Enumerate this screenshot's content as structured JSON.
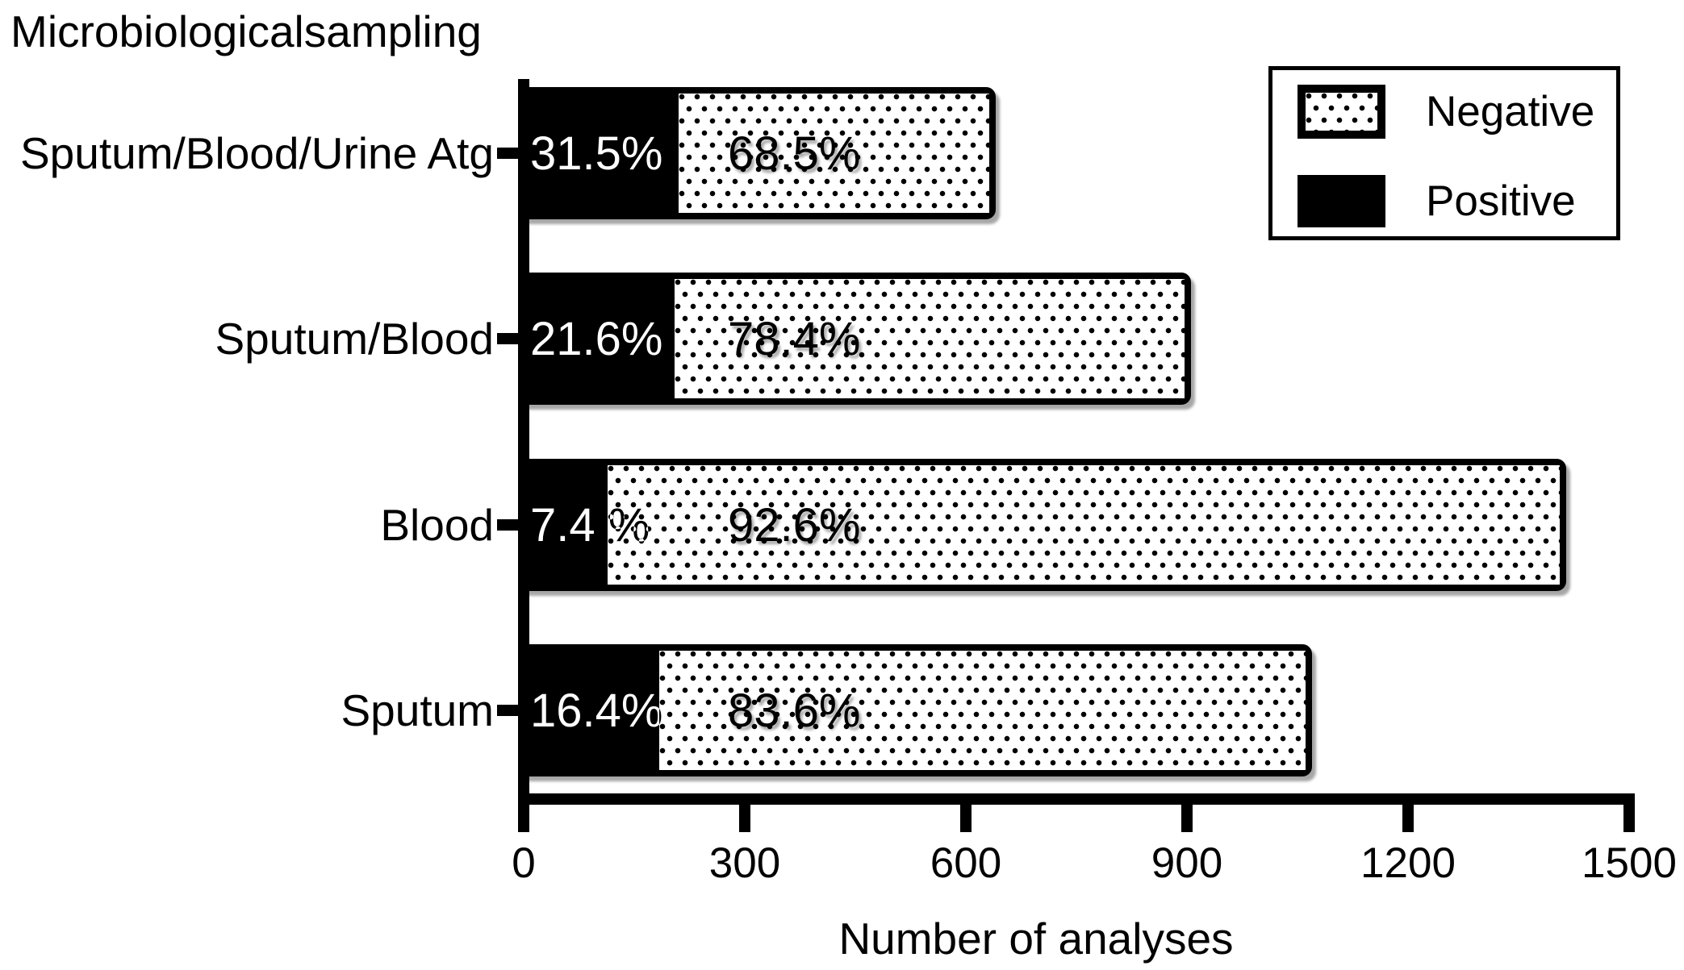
{
  "title": "Microbiologicalsampling",
  "x_axis": {
    "label": "Number of analyses",
    "tick_labels": [
      "0",
      "300",
      "600",
      "900",
      "1200",
      "1500"
    ],
    "min": 0,
    "max": 1500
  },
  "legend": {
    "items": [
      {
        "label": "Negative",
        "swatch": "dotted-pattern"
      },
      {
        "label": "Positive",
        "swatch": "solid-black"
      }
    ]
  },
  "bars": [
    {
      "category": "Sputum/Blood/Urine Atg",
      "positive_label": "31.5%",
      "negative_label": "68.5%",
      "positive_pct": 31.5,
      "negative_pct": 68.5,
      "total_analyses_approx": 640
    },
    {
      "category": "Sputum/Blood",
      "positive_label": "21.6%",
      "negative_label": "78.4%",
      "positive_pct": 21.6,
      "negative_pct": 78.4,
      "total_analyses_approx": 905
    },
    {
      "category": "Blood",
      "positive_label": "7.4 %",
      "negative_label": "92.6%",
      "positive_pct": 7.4,
      "negative_pct": 92.6,
      "total_analyses_approx": 1415
    },
    {
      "category": "Sputum",
      "positive_label": "16.4%",
      "negative_label": "83.6%",
      "positive_pct": 16.4,
      "negative_pct": 83.6,
      "total_analyses_approx": 1070
    }
  ],
  "colors": {
    "foreground": "#000000",
    "background": "#ffffff"
  },
  "chart_data": {
    "type": "bar",
    "orientation": "horizontal",
    "stacked": true,
    "title": "Microbiologicalsampling",
    "xlabel": "Number of analyses",
    "xlim": [
      0,
      1500
    ],
    "xticks": [
      0,
      300,
      600,
      900,
      1200,
      1500
    ],
    "categories_top_to_bottom": [
      "Sputum/Blood/Urine Atg",
      "Sputum/Blood",
      "Blood",
      "Sputum"
    ],
    "series": [
      {
        "name": "Positive",
        "style": "solid-black",
        "percent_values": [
          31.5,
          21.6,
          7.4,
          16.4
        ]
      },
      {
        "name": "Negative",
        "style": "dotted-pattern",
        "percent_values": [
          68.5,
          78.4,
          92.6,
          83.6
        ]
      }
    ],
    "total_bar_lengths_analyses_approx": [
      640,
      905,
      1415,
      1070
    ],
    "legend_position": "top-right",
    "grid": false
  }
}
